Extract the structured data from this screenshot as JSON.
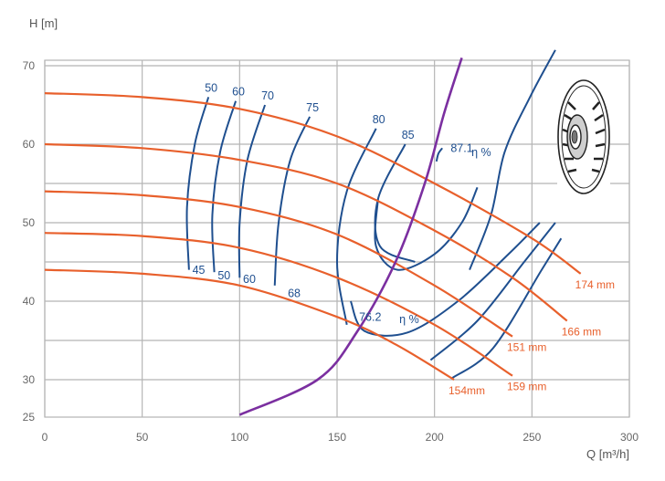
{
  "chart_data": {
    "type": "line",
    "xlabel": "Q [m³/h]",
    "ylabel": "H [m]",
    "xlim": [
      0,
      300
    ],
    "ylim": [
      25,
      71
    ],
    "x_ticks": [
      "0",
      "50",
      "100",
      "150",
      "200",
      "250",
      "300"
    ],
    "y_ticks": [
      "25",
      "30",
      "40",
      "50",
      "60",
      "70"
    ],
    "grid": true,
    "colors": {
      "impeller": "#e8602c",
      "efficiency": "#1f4f8f",
      "system": "#7b2fa0",
      "grid": "#b5b5b5",
      "tick": "#666666"
    },
    "impeller_curves": [
      {
        "label": "174 mm",
        "points": [
          [
            0,
            66.5
          ],
          [
            50,
            66
          ],
          [
            100,
            64.5
          ],
          [
            150,
            61
          ],
          [
            200,
            55
          ],
          [
            250,
            48
          ],
          [
            275,
            43.5
          ]
        ]
      },
      {
        "label": "166 mm",
        "points": [
          [
            0,
            60
          ],
          [
            50,
            59.5
          ],
          [
            100,
            58
          ],
          [
            150,
            55
          ],
          [
            200,
            49
          ],
          [
            240,
            43
          ],
          [
            268,
            37.5
          ]
        ]
      },
      {
        "label": "151 mm",
        "points": [
          [
            0,
            54
          ],
          [
            50,
            53.5
          ],
          [
            100,
            52
          ],
          [
            150,
            48.5
          ],
          [
            200,
            42
          ],
          [
            240,
            35.5
          ]
        ]
      },
      {
        "label": "159 mm",
        "points": [
          [
            0,
            48.7
          ],
          [
            50,
            48.3
          ],
          [
            100,
            46.8
          ],
          [
            150,
            43
          ],
          [
            200,
            37
          ],
          [
            240,
            30.5
          ]
        ]
      },
      {
        "label": "154mm",
        "points": [
          [
            0,
            44
          ],
          [
            50,
            43.5
          ],
          [
            100,
            42
          ],
          [
            150,
            38
          ],
          [
            180,
            34.5
          ],
          [
            210,
            30
          ]
        ]
      }
    ],
    "efficiency_lines": [
      {
        "label": "50",
        "points": [
          [
            74,
            44
          ],
          [
            73,
            52
          ],
          [
            77,
            60
          ],
          [
            84,
            66
          ]
        ]
      },
      {
        "label": "60",
        "points": [
          [
            87,
            43.7
          ],
          [
            86,
            51
          ],
          [
            90,
            59
          ],
          [
            98,
            65.5
          ]
        ]
      },
      {
        "label": "70",
        "points": [
          [
            100,
            43
          ],
          [
            100,
            50
          ],
          [
            104,
            58
          ],
          [
            113,
            65
          ]
        ]
      },
      {
        "label": "75",
        "points": [
          [
            118,
            42
          ],
          [
            120,
            50
          ],
          [
            126,
            58
          ],
          [
            136,
            63.5
          ]
        ]
      },
      {
        "label": "80",
        "points": [
          [
            155,
            37
          ],
          [
            150,
            45
          ],
          [
            155,
            54
          ],
          [
            170,
            62
          ]
        ]
      },
      {
        "label": "85",
        "points": [
          [
            190,
            45
          ],
          [
            172,
            47
          ],
          [
            171,
            53
          ],
          [
            185,
            60
          ]
        ]
      },
      {
        "label": "",
        "points": [
          [
            218,
            44
          ],
          [
            229,
            51
          ],
          [
            236,
            59
          ],
          [
            249,
            66
          ],
          [
            262,
            72
          ]
        ]
      }
    ],
    "efficiency_labels": [
      {
        "text": "45",
        "q": 79,
        "h": 43.5
      },
      {
        "text": "50",
        "q": 92,
        "h": 42.8
      },
      {
        "text": "60",
        "q": 105,
        "h": 42.3
      },
      {
        "text": "68",
        "q": 128,
        "h": 40.5
      },
      {
        "text": "87.1",
        "q": 214,
        "h": 59
      },
      {
        "text": "η %",
        "q": 224,
        "h": 58.5
      },
      {
        "text": "76.2",
        "q": 167,
        "h": 37.5
      },
      {
        "text": "η %",
        "q": 187,
        "h": 37.2
      }
    ],
    "system_curve": {
      "points": [
        [
          100,
          25.3
        ],
        [
          140,
          30
        ],
        [
          160,
          36
        ],
        [
          180,
          45
        ],
        [
          195,
          55
        ],
        [
          205,
          64
        ],
        [
          214,
          71
        ]
      ]
    }
  }
}
